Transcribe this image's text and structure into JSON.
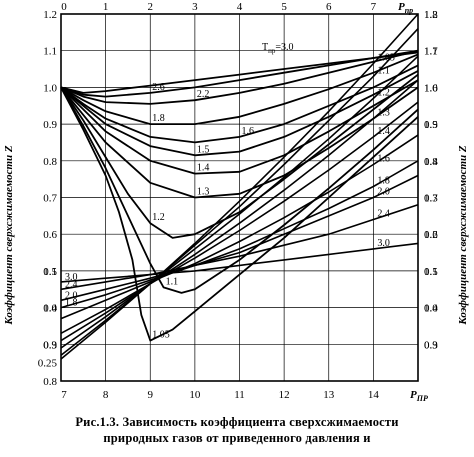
{
  "chart_data": {
    "type": "line",
    "title": "",
    "xlabel_top": "P",
    "xlabel_top_sub": "пр",
    "xlabel_bottom": "P",
    "xlabel_bottom_sub": "ПР",
    "ylabel_left": "Коэффициент сверхсжимаемости Z",
    "ylabel_right": "Коэффициент сверхсжимаемости Z",
    "grid": true,
    "x_top_range": [
      0,
      8
    ],
    "x_top_ticks": [
      "0",
      "1",
      "2",
      "3",
      "4",
      "5",
      "6",
      "7"
    ],
    "x_bottom_range": [
      7,
      15
    ],
    "x_bottom_ticks": [
      "7",
      "8",
      "9",
      "10",
      "11",
      "12",
      "13",
      "14"
    ],
    "y_left_top_range": [
      0.2,
      1.2
    ],
    "y_left_top_ticks": [
      "1.2",
      "1.1",
      "1.0",
      "0.9",
      "0.8",
      "0.7",
      "0.6",
      "0.5",
      "0.4",
      "0.3",
      "0.25"
    ],
    "y_right_top_ticks": [
      "1.2",
      "1.1",
      "1.0",
      "0.9",
      "0.8",
      "0.7",
      "0.6",
      "0.5",
      "0.4",
      "0.3"
    ],
    "y_left_bottom_ticks": [
      "1.1",
      "1.0",
      "0.9",
      "0.8"
    ],
    "y_right_bottom_ticks": [
      "1.8",
      "1.7",
      "1.6",
      "1.5",
      "1.4",
      "1.3",
      "1.2",
      "1.1",
      "1.0",
      "0.9"
    ],
    "series_top_label_prefix": "T",
    "series_top_label_sub": "пр",
    "series_top_label_value": "=3.0",
    "series_top": [
      {
        "name": "3.0",
        "x": [
          0,
          0.5,
          1,
          2,
          3,
          4,
          5,
          6,
          7,
          8
        ],
        "y": [
          1.0,
          0.985,
          0.99,
          1.005,
          1.02,
          1.035,
          1.05,
          1.065,
          1.08,
          1.095
        ]
      },
      {
        "name": "2.6",
        "x": [
          0,
          0.5,
          1,
          2,
          3,
          4,
          5,
          6,
          7,
          8
        ],
        "y": [
          1.0,
          0.98,
          0.975,
          0.985,
          1.0,
          1.02,
          1.04,
          1.06,
          1.08,
          1.1
        ]
      },
      {
        "name": "2.2",
        "x": [
          0,
          0.5,
          1,
          2,
          3,
          4,
          5,
          6,
          7,
          8
        ],
        "y": [
          1.0,
          0.975,
          0.96,
          0.955,
          0.965,
          0.985,
          1.01,
          1.04,
          1.07,
          1.1
        ]
      },
      {
        "name": "1.8",
        "x": [
          0,
          0.5,
          1,
          2,
          3,
          4,
          5,
          6,
          7,
          8
        ],
        "y": [
          1.0,
          0.965,
          0.935,
          0.9,
          0.9,
          0.92,
          0.955,
          0.995,
          1.04,
          1.09
        ]
      },
      {
        "name": "1.6",
        "x": [
          0,
          0.5,
          1,
          2,
          3,
          4,
          5,
          6,
          7,
          8
        ],
        "y": [
          1.0,
          0.955,
          0.915,
          0.865,
          0.85,
          0.865,
          0.9,
          0.95,
          1.0,
          1.06
        ]
      },
      {
        "name": "1.5",
        "x": [
          0,
          0.5,
          1,
          2,
          3,
          4,
          5,
          6,
          7,
          8
        ],
        "y": [
          1.0,
          0.95,
          0.9,
          0.84,
          0.815,
          0.825,
          0.865,
          0.92,
          0.98,
          1.045
        ]
      },
      {
        "name": "1.4",
        "x": [
          0,
          0.5,
          1,
          2,
          3,
          4,
          5,
          6,
          7,
          8
        ],
        "y": [
          1.0,
          0.94,
          0.88,
          0.8,
          0.765,
          0.77,
          0.815,
          0.88,
          0.95,
          1.02
        ]
      },
      {
        "name": "1.3",
        "x": [
          0,
          0.5,
          1,
          2,
          3,
          4,
          5,
          6,
          7,
          8
        ],
        "y": [
          1.0,
          0.925,
          0.85,
          0.74,
          0.7,
          0.71,
          0.76,
          0.835,
          0.915,
          1.0
        ]
      },
      {
        "name": "1.2",
        "x": [
          0,
          0.5,
          1,
          1.5,
          2,
          2.5,
          3,
          4,
          5,
          6,
          7,
          8
        ],
        "y": [
          1.0,
          0.91,
          0.81,
          0.71,
          0.63,
          0.59,
          0.6,
          0.66,
          0.75,
          0.845,
          0.94,
          1.035
        ]
      },
      {
        "name": "1.1",
        "x": [
          0,
          0.5,
          1,
          1.5,
          2,
          2.3,
          2.7,
          3,
          4,
          5,
          6,
          7,
          8
        ],
        "y": [
          1.0,
          0.895,
          0.78,
          0.65,
          0.52,
          0.455,
          0.44,
          0.45,
          0.53,
          0.625,
          0.725,
          0.83,
          0.94
        ]
      },
      {
        "name": "1.05",
        "x": [
          0,
          0.5,
          1,
          1.3,
          1.6,
          1.8,
          2,
          2.5,
          3,
          4,
          5,
          6,
          7,
          8
        ],
        "y": [
          1.0,
          0.885,
          0.76,
          0.66,
          0.53,
          0.38,
          0.31,
          0.34,
          0.39,
          0.49,
          0.59,
          0.7,
          0.81,
          0.92
        ]
      }
    ],
    "series_bottom": [
      {
        "name": "3.0",
        "x": [
          7,
          8,
          9,
          10,
          11,
          12,
          13,
          14,
          15
        ],
        "y": [
          1.07,
          1.08,
          1.09,
          1.1,
          1.115,
          1.13,
          1.145,
          1.16,
          1.175
        ]
      },
      {
        "name": "2.4",
        "x": [
          7,
          8,
          9,
          10,
          11,
          12,
          13,
          14,
          15
        ],
        "y": [
          1.05,
          1.07,
          1.09,
          1.115,
          1.14,
          1.17,
          1.2,
          1.24,
          1.28
        ]
      },
      {
        "name": "2.0",
        "x": [
          7,
          8,
          9,
          10,
          11,
          12,
          13,
          14,
          15
        ],
        "y": [
          1.02,
          1.05,
          1.08,
          1.115,
          1.15,
          1.2,
          1.25,
          1.3,
          1.36
        ]
      },
      {
        "name": "1.8",
        "x": [
          7,
          8,
          9,
          10,
          11,
          12,
          13,
          14,
          15
        ],
        "y": [
          1.0,
          1.035,
          1.075,
          1.115,
          1.16,
          1.215,
          1.27,
          1.33,
          1.4
        ]
      },
      {
        "name": "1.6",
        "x": [
          7,
          8,
          9,
          10,
          11,
          12,
          13,
          14,
          15
        ],
        "y": [
          0.97,
          1.02,
          1.07,
          1.12,
          1.18,
          1.245,
          1.315,
          1.39,
          1.47
        ]
      },
      {
        "name": "1.4",
        "x": [
          7,
          8,
          9,
          10,
          11,
          12,
          13,
          14,
          15
        ],
        "y": [
          0.93,
          0.995,
          1.065,
          1.135,
          1.21,
          1.29,
          1.375,
          1.465,
          1.56
        ]
      },
      {
        "name": "1.3",
        "x": [
          7,
          8,
          9,
          10,
          11,
          12,
          13,
          14,
          15
        ],
        "y": [
          0.91,
          0.985,
          1.065,
          1.145,
          1.23,
          1.32,
          1.415,
          1.515,
          1.62
        ]
      },
      {
        "name": "1.2",
        "x": [
          7,
          8,
          9,
          10,
          11,
          12,
          13,
          14,
          15
        ],
        "y": [
          0.89,
          0.975,
          1.065,
          1.16,
          1.255,
          1.355,
          1.46,
          1.57,
          1.685
        ]
      },
      {
        "name": "1.1",
        "x": [
          7,
          8,
          9,
          10,
          11,
          12,
          13,
          14,
          15
        ],
        "y": [
          0.87,
          0.965,
          1.065,
          1.17,
          1.275,
          1.39,
          1.51,
          1.63,
          1.76
        ]
      },
      {
        "name": "1.05",
        "x": [
          7,
          8,
          9,
          10,
          11,
          12,
          13,
          14,
          15
        ],
        "y": [
          0.86,
          0.96,
          1.065,
          1.175,
          1.29,
          1.41,
          1.535,
          1.665,
          1.8
        ]
      }
    ]
  },
  "caption": {
    "fig_label": "Рис.1.3.",
    "line1": "Зависимость коэффициента сверхсжимаемости",
    "line2": "природных газов от приведенного давления и"
  }
}
